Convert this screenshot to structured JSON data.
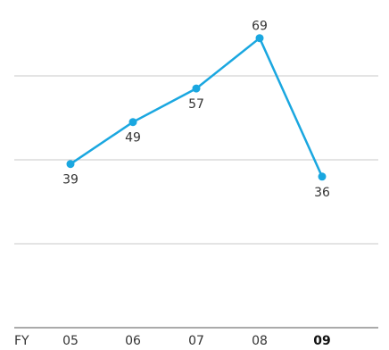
{
  "chart_data": {
    "type": "line",
    "axis_prefix": "FY",
    "categories": [
      "05",
      "06",
      "07",
      "08",
      "09"
    ],
    "highlight_category": "09",
    "series": [
      {
        "values": [
          39,
          49,
          57,
          69,
          36
        ]
      }
    ],
    "data_labels": [
      "39",
      "49",
      "57",
      "69",
      "36"
    ],
    "gridlines": [
      20,
      40,
      60
    ],
    "grid": true,
    "legend": false,
    "colors": {
      "line": "#1aa7e0",
      "grid": "#c8c8c8",
      "axis": "#555555",
      "text": "#333333"
    }
  }
}
